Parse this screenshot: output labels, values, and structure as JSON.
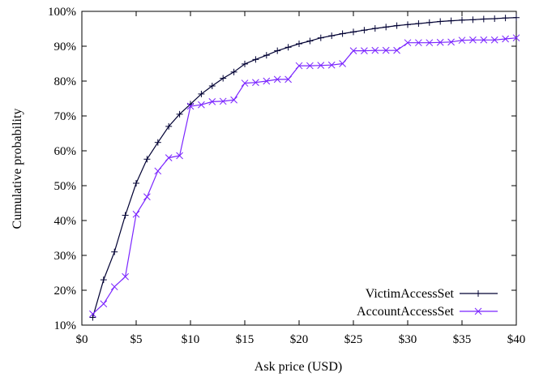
{
  "chart_data": {
    "type": "line",
    "title": "",
    "xlabel": "Ask price (USD)",
    "ylabel": "Cumulative probability",
    "xlim": [
      0,
      40
    ],
    "ylim": [
      10,
      100
    ],
    "x_ticks": [
      0,
      5,
      10,
      15,
      20,
      25,
      30,
      35,
      40
    ],
    "x_tick_labels": [
      "$0",
      "$5",
      "$10",
      "$15",
      "$20",
      "$25",
      "$30",
      "$35",
      "$40"
    ],
    "y_ticks": [
      10,
      20,
      30,
      40,
      50,
      60,
      70,
      80,
      90,
      100
    ],
    "y_tick_labels": [
      "10%",
      "20%",
      "30%",
      "40%",
      "50%",
      "60%",
      "70%",
      "80%",
      "90%",
      "100%"
    ],
    "grid": false,
    "legend_position": "bottom-right",
    "series": [
      {
        "name": "VictimAccessSet",
        "color": "#000033",
        "marker": "plus",
        "x": [
          1,
          2,
          3,
          4,
          5,
          6,
          7,
          8,
          9,
          10,
          11,
          12,
          13,
          14,
          15,
          16,
          17,
          18,
          19,
          20,
          21,
          22,
          23,
          24,
          25,
          26,
          27,
          28,
          29,
          30,
          31,
          32,
          33,
          34,
          35,
          36,
          37,
          38,
          39,
          40
        ],
        "y": [
          12.2,
          23.0,
          31.0,
          41.5,
          50.7,
          57.6,
          62.4,
          67.0,
          70.5,
          73.4,
          76.3,
          78.6,
          80.8,
          82.6,
          84.9,
          86.2,
          87.4,
          88.7,
          89.7,
          90.7,
          91.5,
          92.4,
          93.0,
          93.6,
          94.1,
          94.6,
          95.1,
          95.5,
          95.9,
          96.2,
          96.5,
          96.8,
          97.1,
          97.3,
          97.5,
          97.6,
          97.8,
          97.9,
          98.1,
          98.2
        ]
      },
      {
        "name": "AccountAccessSet",
        "color": "#7a24ff",
        "marker": "x",
        "x": [
          1,
          2,
          3,
          4,
          5,
          6,
          7,
          8,
          9,
          10,
          11,
          12,
          13,
          14,
          15,
          16,
          17,
          18,
          19,
          20,
          21,
          22,
          23,
          24,
          25,
          26,
          27,
          28,
          29,
          30,
          31,
          32,
          33,
          34,
          35,
          36,
          37,
          38,
          39,
          40
        ],
        "y": [
          13.2,
          16.1,
          21.0,
          23.9,
          41.8,
          46.8,
          54.2,
          58.0,
          58.6,
          72.8,
          73.2,
          74.1,
          74.2,
          74.6,
          79.4,
          79.6,
          80.0,
          80.5,
          80.5,
          84.4,
          84.4,
          84.5,
          84.6,
          85.0,
          88.7,
          88.7,
          88.8,
          88.8,
          88.8,
          91.0,
          91.0,
          91.0,
          91.1,
          91.2,
          91.7,
          91.8,
          91.8,
          91.8,
          92.1,
          92.4
        ]
      }
    ]
  }
}
